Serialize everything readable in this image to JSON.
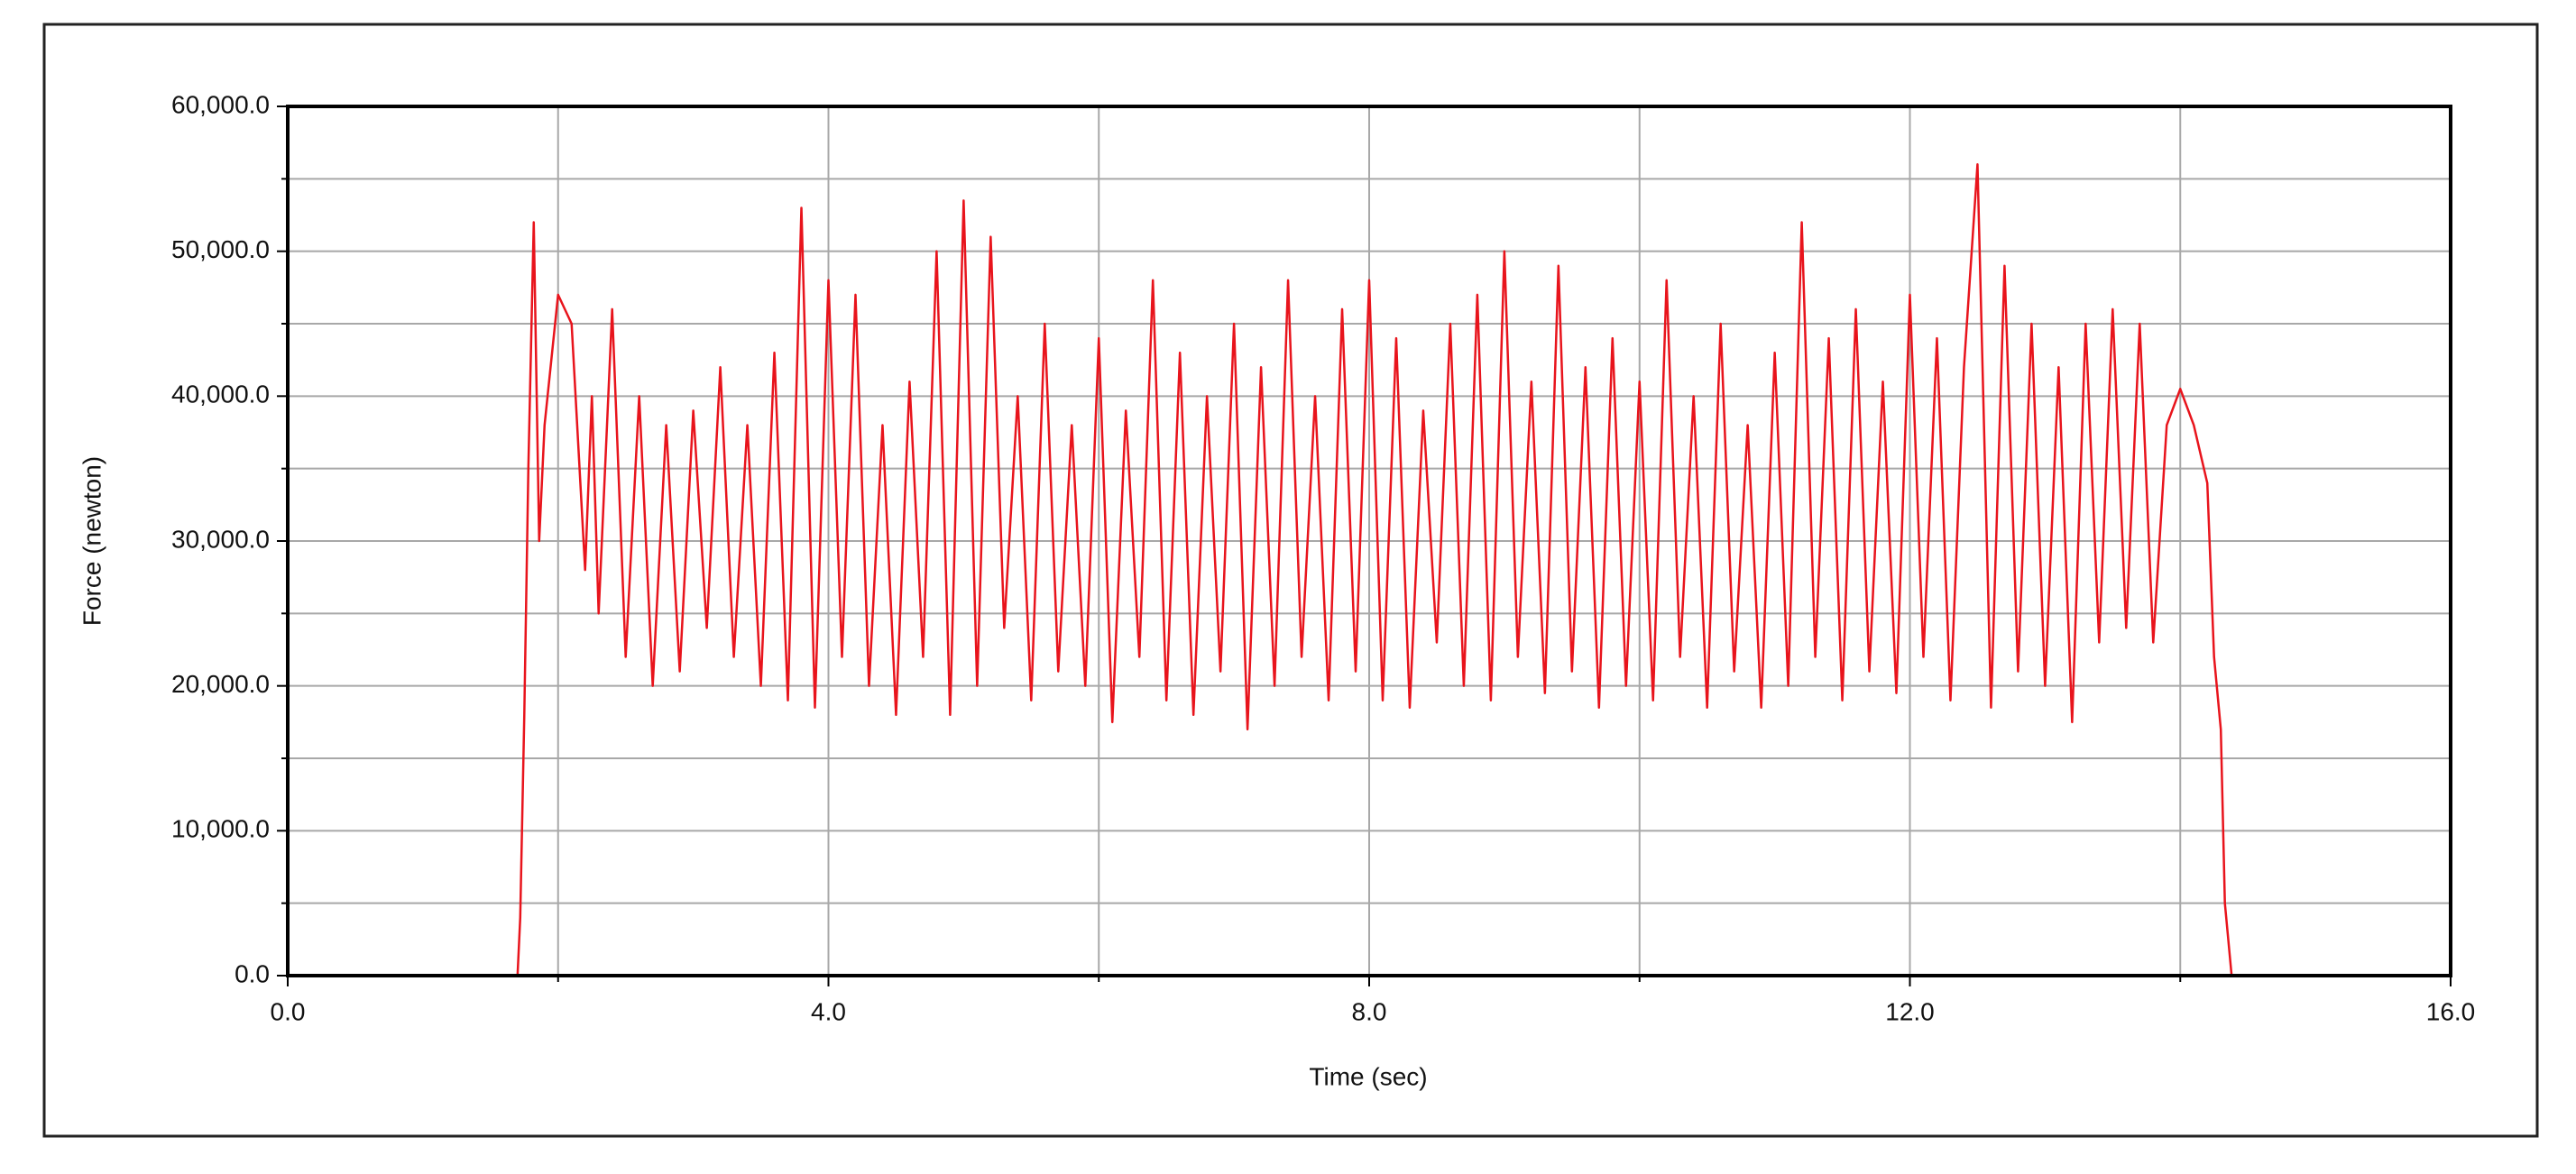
{
  "chart_data": {
    "type": "line",
    "x_label": "Time (sec)",
    "y_label": "Force (newton)",
    "color": "#e8141c",
    "grid": true,
    "xlim": [
      0,
      16
    ],
    "xticks": [
      {
        "value": 0,
        "label": "0.0"
      },
      {
        "value": 4,
        "label": "4.0"
      },
      {
        "value": 8,
        "label": "8.0"
      },
      {
        "value": 12,
        "label": "12.0"
      },
      {
        "value": 16,
        "label": "16.0"
      }
    ],
    "x_minor_ticks": [
      2,
      6,
      10,
      14
    ],
    "ylim": [
      0,
      60000
    ],
    "yticks": [
      {
        "value": 0,
        "label": "0.0"
      },
      {
        "value": 10000,
        "label": "10,000.0"
      },
      {
        "value": 20000,
        "label": "20,000.0"
      },
      {
        "value": 30000,
        "label": "30,000.0"
      },
      {
        "value": 40000,
        "label": "40,000.0"
      },
      {
        "value": 50000,
        "label": "50,000.0"
      },
      {
        "value": 60000,
        "label": "60,000.0"
      }
    ],
    "y_minor_ticks": [
      5000,
      15000,
      25000,
      35000,
      45000,
      55000
    ],
    "x": [
      1.6,
      1.7,
      1.72,
      1.75,
      1.78,
      1.82,
      1.86,
      1.9,
      2.0,
      2.1,
      2.2,
      2.25,
      2.3,
      2.4,
      2.5,
      2.6,
      2.7,
      2.8,
      2.9,
      3.0,
      3.1,
      3.2,
      3.3,
      3.4,
      3.5,
      3.6,
      3.7,
      3.8,
      3.9,
      4.0,
      4.1,
      4.2,
      4.3,
      4.4,
      4.5,
      4.6,
      4.7,
      4.8,
      4.9,
      5.0,
      5.1,
      5.2,
      5.3,
      5.4,
      5.5,
      5.6,
      5.7,
      5.8,
      5.9,
      6.0,
      6.1,
      6.2,
      6.3,
      6.4,
      6.5,
      6.6,
      6.7,
      6.8,
      6.9,
      7.0,
      7.1,
      7.2,
      7.3,
      7.4,
      7.5,
      7.6,
      7.7,
      7.8,
      7.9,
      8.0,
      8.1,
      8.2,
      8.3,
      8.4,
      8.5,
      8.6,
      8.7,
      8.8,
      8.9,
      9.0,
      9.1,
      9.2,
      9.3,
      9.4,
      9.5,
      9.6,
      9.7,
      9.8,
      9.9,
      10.0,
      10.1,
      10.2,
      10.3,
      10.4,
      10.5,
      10.6,
      10.7,
      10.8,
      10.9,
      11.0,
      11.1,
      11.2,
      11.3,
      11.4,
      11.5,
      11.6,
      11.7,
      11.8,
      11.9,
      12.0,
      12.1,
      12.2,
      12.3,
      12.4,
      12.5,
      12.6,
      12.7,
      12.8,
      12.9,
      13.0,
      13.1,
      13.2,
      13.3,
      13.4,
      13.5,
      13.6,
      13.7,
      13.8,
      13.9,
      14.0,
      14.1,
      14.2,
      14.25,
      14.3,
      14.33,
      14.38
    ],
    "values": [
      0,
      0,
      4000,
      18000,
      35000,
      52000,
      30000,
      38000,
      47000,
      45000,
      28000,
      40000,
      25000,
      46000,
      22000,
      40000,
      20000,
      38000,
      21000,
      39000,
      24000,
      42000,
      22000,
      38000,
      20000,
      43000,
      19000,
      53000,
      18500,
      48000,
      22000,
      47000,
      20000,
      38000,
      18000,
      41000,
      22000,
      50000,
      18000,
      53500,
      20000,
      51000,
      24000,
      40000,
      19000,
      45000,
      21000,
      38000,
      20000,
      44000,
      17500,
      39000,
      22000,
      48000,
      19000,
      43000,
      18000,
      40000,
      21000,
      45000,
      17000,
      42000,
      20000,
      48000,
      22000,
      40000,
      19000,
      46000,
      21000,
      48000,
      19000,
      44000,
      18500,
      39000,
      23000,
      45000,
      20000,
      47000,
      19000,
      50000,
      22000,
      41000,
      19500,
      49000,
      21000,
      42000,
      18500,
      44000,
      20000,
      41000,
      19000,
      48000,
      22000,
      40000,
      18500,
      45000,
      21000,
      38000,
      18500,
      43000,
      20000,
      52000,
      22000,
      44000,
      19000,
      46000,
      21000,
      41000,
      19500,
      47000,
      22000,
      44000,
      19000,
      42000,
      56000,
      18500,
      49000,
      21000,
      45000,
      20000,
      42000,
      17500,
      45000,
      23000,
      46000,
      24000,
      45000,
      23000,
      38000,
      40500,
      38000,
      34000,
      22000,
      17000,
      5000,
      0
    ]
  }
}
